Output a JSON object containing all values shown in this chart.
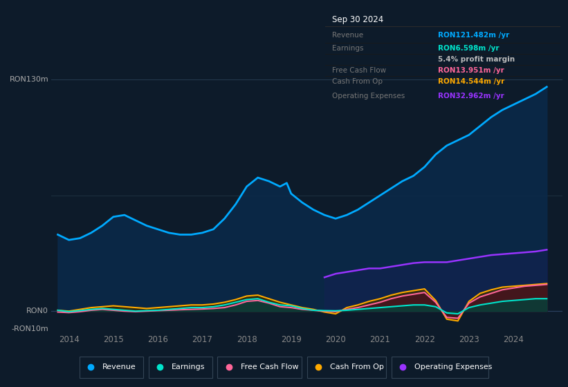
{
  "bg_color": "#0d1b2a",
  "plot_bg_color": "#0d1b2a",
  "grid_color": "#1e3a5f",
  "title_box": {
    "date": "Sep 30 2024",
    "rows": [
      {
        "label": "Revenue",
        "value": "RON121.482m /yr",
        "color": "#00aaff"
      },
      {
        "label": "Earnings",
        "value": "RON6.598m /yr",
        "color": "#00e5cc"
      },
      {
        "label": "",
        "value": "5.4% profit margin",
        "color": "#bbbbbb"
      },
      {
        "label": "Free Cash Flow",
        "value": "RON13.951m /yr",
        "color": "#ff6699"
      },
      {
        "label": "Cash From Op",
        "value": "RON14.544m /yr",
        "color": "#ffaa00"
      },
      {
        "label": "Operating Expenses",
        "value": "RON32.962m /yr",
        "color": "#9933ff"
      }
    ]
  },
  "ylabel_top": "RON130m",
  "ylabel_zero": "RON0",
  "ylabel_neg": "-RON10m",
  "ylim": [
    -10,
    140
  ],
  "legend": [
    {
      "label": "Revenue",
      "color": "#00aaff"
    },
    {
      "label": "Earnings",
      "color": "#00e5cc"
    },
    {
      "label": "Free Cash Flow",
      "color": "#ff6699"
    },
    {
      "label": "Cash From Op",
      "color": "#ffaa00"
    },
    {
      "label": "Operating Expenses",
      "color": "#9933ff"
    }
  ],
  "revenue": {
    "color": "#00aaff",
    "fill_color": "#0a2a4a",
    "x": [
      2013.75,
      2014.0,
      2014.25,
      2014.5,
      2014.75,
      2015.0,
      2015.25,
      2015.5,
      2015.75,
      2016.0,
      2016.25,
      2016.5,
      2016.75,
      2017.0,
      2017.25,
      2017.5,
      2017.75,
      2018.0,
      2018.25,
      2018.5,
      2018.75,
      2018.9,
      2019.0,
      2019.25,
      2019.5,
      2019.75,
      2020.0,
      2020.25,
      2020.5,
      2020.75,
      2021.0,
      2021.25,
      2021.5,
      2021.75,
      2022.0,
      2022.25,
      2022.5,
      2022.75,
      2023.0,
      2023.25,
      2023.5,
      2023.75,
      2024.0,
      2024.25,
      2024.5,
      2024.75
    ],
    "y": [
      43,
      40,
      41,
      44,
      48,
      53,
      54,
      51,
      48,
      46,
      44,
      43,
      43,
      44,
      46,
      52,
      60,
      70,
      75,
      73,
      70,
      72,
      66,
      61,
      57,
      54,
      52,
      54,
      57,
      61,
      65,
      69,
      73,
      76,
      81,
      88,
      93,
      96,
      99,
      104,
      109,
      113,
      116,
      119,
      122,
      126
    ]
  },
  "earnings": {
    "color": "#00e5cc",
    "fill_color": "#00443d",
    "x": [
      2013.75,
      2014.0,
      2014.25,
      2014.5,
      2014.75,
      2015.0,
      2015.25,
      2015.5,
      2015.75,
      2016.0,
      2016.25,
      2016.5,
      2016.75,
      2017.0,
      2017.25,
      2017.5,
      2017.75,
      2018.0,
      2018.25,
      2018.5,
      2018.75,
      2019.0,
      2019.25,
      2019.5,
      2019.75,
      2020.0,
      2020.25,
      2020.5,
      2020.75,
      2021.0,
      2021.25,
      2021.5,
      2021.75,
      2022.0,
      2022.25,
      2022.5,
      2022.75,
      2023.0,
      2023.25,
      2023.5,
      2023.75,
      2024.0,
      2024.25,
      2024.5,
      2024.75
    ],
    "y": [
      0.5,
      -0.3,
      0.3,
      1.0,
      1.5,
      1.0,
      0.5,
      0.0,
      0.3,
      0.5,
      1.0,
      1.5,
      2.0,
      2.0,
      2.5,
      3.5,
      5.0,
      6.5,
      7.0,
      5.0,
      3.5,
      3.0,
      1.5,
      0.5,
      0.3,
      0.2,
      0.5,
      1.0,
      1.5,
      2.0,
      2.5,
      3.0,
      3.5,
      3.5,
      2.5,
      -1.0,
      -1.5,
      2.0,
      3.5,
      4.5,
      5.5,
      6.0,
      6.5,
      7.0,
      7.0
    ]
  },
  "fcf": {
    "color": "#ff6699",
    "fill_color": "#4a1020",
    "x": [
      2013.75,
      2014.0,
      2014.25,
      2014.5,
      2014.75,
      2015.0,
      2015.25,
      2015.5,
      2015.75,
      2016.0,
      2016.25,
      2016.5,
      2016.75,
      2017.0,
      2017.25,
      2017.5,
      2017.75,
      2018.0,
      2018.25,
      2018.5,
      2018.75,
      2019.0,
      2019.25,
      2019.5,
      2019.75,
      2020.0,
      2020.25,
      2020.5,
      2020.75,
      2021.0,
      2021.25,
      2021.5,
      2021.75,
      2022.0,
      2022.25,
      2022.5,
      2022.75,
      2023.0,
      2023.25,
      2023.5,
      2023.75,
      2024.0,
      2024.25,
      2024.5,
      2024.75
    ],
    "y": [
      -0.5,
      -0.8,
      -0.3,
      0.5,
      1.0,
      0.5,
      0.0,
      -0.3,
      0.0,
      0.3,
      0.5,
      0.8,
      1.0,
      1.2,
      1.5,
      2.0,
      3.5,
      5.5,
      6.0,
      4.5,
      2.5,
      2.0,
      1.0,
      0.5,
      0.0,
      -0.3,
      1.0,
      2.0,
      3.5,
      5.0,
      7.0,
      8.5,
      9.5,
      10.5,
      5.0,
      -3.5,
      -4.0,
      4.5,
      8.0,
      10.0,
      12.0,
      13.0,
      14.0,
      14.5,
      15.0
    ]
  },
  "cashfromop": {
    "color": "#ffaa00",
    "fill_color": "#3a2e00",
    "x": [
      2013.75,
      2014.0,
      2014.25,
      2014.5,
      2014.75,
      2015.0,
      2015.25,
      2015.5,
      2015.75,
      2016.0,
      2016.25,
      2016.5,
      2016.75,
      2017.0,
      2017.25,
      2017.5,
      2017.75,
      2018.0,
      2018.25,
      2018.5,
      2018.75,
      2019.0,
      2019.25,
      2019.5,
      2019.75,
      2020.0,
      2020.25,
      2020.5,
      2020.75,
      2021.0,
      2021.25,
      2021.5,
      2021.75,
      2022.0,
      2022.25,
      2022.5,
      2022.75,
      2023.0,
      2023.25,
      2023.5,
      2023.75,
      2024.0,
      2024.25,
      2024.5,
      2024.75
    ],
    "y": [
      0.5,
      0.0,
      1.0,
      2.0,
      2.5,
      3.0,
      2.5,
      2.0,
      1.5,
      2.0,
      2.5,
      3.0,
      3.5,
      3.5,
      4.0,
      5.0,
      6.5,
      8.5,
      9.0,
      7.0,
      5.0,
      3.5,
      2.0,
      1.0,
      -0.5,
      -1.5,
      2.0,
      3.5,
      5.5,
      7.0,
      9.0,
      10.5,
      11.5,
      12.5,
      6.0,
      -4.5,
      -5.5,
      5.5,
      10.0,
      12.0,
      13.5,
      14.0,
      14.5,
      15.0,
      15.5
    ]
  },
  "opex": {
    "color": "#9933ff",
    "fill_color": "#2d0060",
    "x": [
      2019.75,
      2020.0,
      2020.25,
      2020.5,
      2020.75,
      2021.0,
      2021.25,
      2021.5,
      2021.75,
      2022.0,
      2022.25,
      2022.5,
      2022.75,
      2023.0,
      2023.25,
      2023.5,
      2023.75,
      2024.0,
      2024.25,
      2024.5,
      2024.75
    ],
    "y": [
      19,
      21,
      22,
      23,
      24,
      24,
      25,
      26,
      27,
      27.5,
      27.5,
      27.5,
      28.5,
      29.5,
      30.5,
      31.5,
      32,
      32.5,
      33.0,
      33.5,
      34.5
    ]
  },
  "xlim": [
    2013.6,
    2025.1
  ],
  "xticks": [
    2014,
    2015,
    2016,
    2017,
    2018,
    2019,
    2020,
    2021,
    2022,
    2023,
    2024
  ]
}
